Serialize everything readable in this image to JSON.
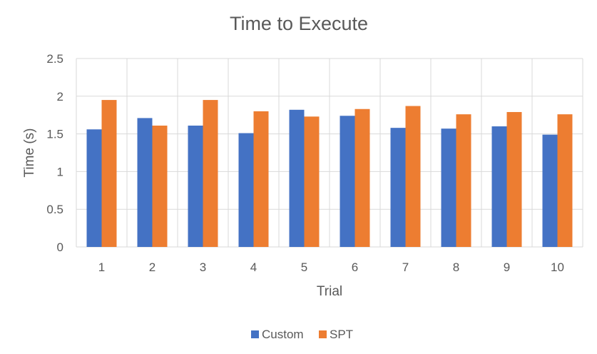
{
  "chart_data": {
    "type": "bar",
    "title": "Time to Execute",
    "xlabel": "Trial",
    "ylabel": "Time (s)",
    "categories": [
      "1",
      "2",
      "3",
      "4",
      "5",
      "6",
      "7",
      "8",
      "9",
      "10"
    ],
    "series": [
      {
        "name": "Custom",
        "color": "#4472C4",
        "values": [
          1.56,
          1.71,
          1.61,
          1.51,
          1.82,
          1.74,
          1.58,
          1.57,
          1.6,
          1.49
        ]
      },
      {
        "name": "SPT",
        "color": "#ED7D31",
        "values": [
          1.95,
          1.61,
          1.95,
          1.8,
          1.73,
          1.83,
          1.87,
          1.76,
          1.79,
          1.76
        ]
      }
    ],
    "ylim": [
      0,
      2.5
    ],
    "yticks": [
      "0",
      "0.5",
      "1",
      "1.5",
      "2",
      "2.5"
    ],
    "grid": true,
    "legend_position": "bottom"
  }
}
